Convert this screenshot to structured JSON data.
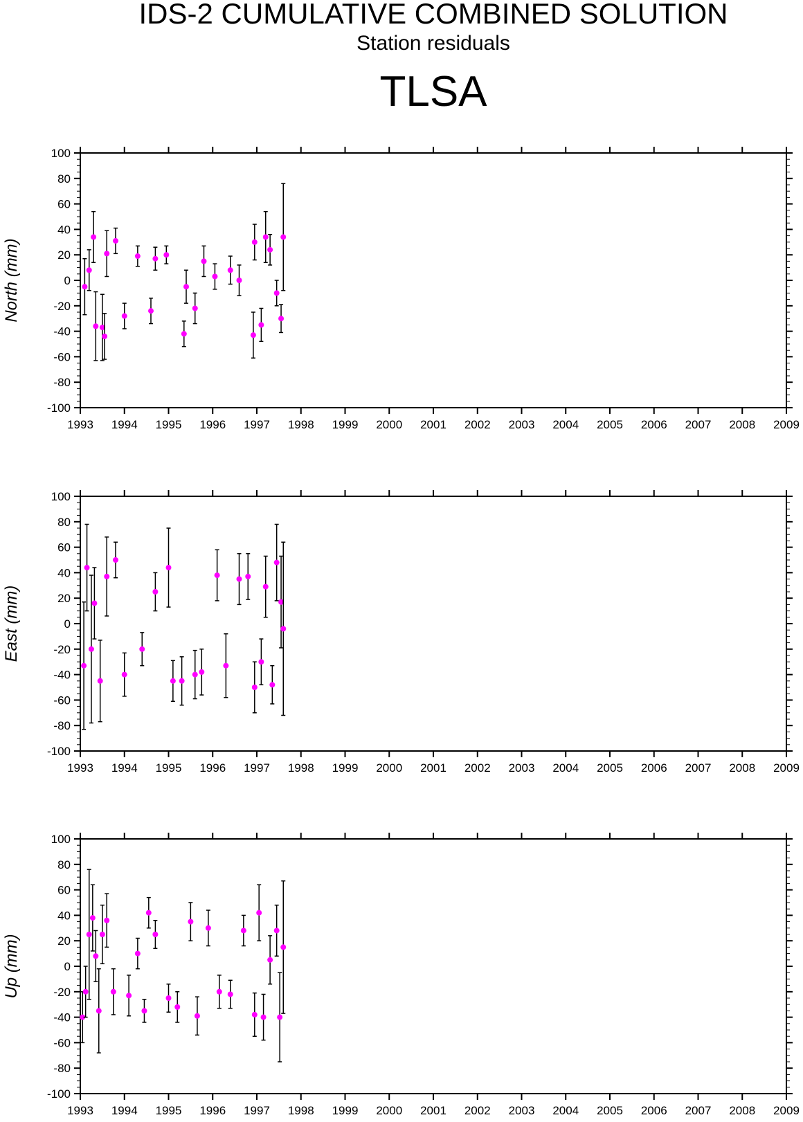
{
  "title": "IDS-2 CUMULATIVE COMBINED SOLUTION",
  "subtitle": "Station residuals",
  "station": "TLSA",
  "colors": {
    "marker": "#ff00ff",
    "errorbar": "#000000",
    "frame": "#000000"
  },
  "chart_data": [
    {
      "type": "scatter",
      "ylabel": "North (mm)",
      "xlim": [
        1993,
        2009
      ],
      "ylim": [
        -100,
        100
      ],
      "x_ticks": [
        "1993",
        "1994",
        "1995",
        "1996",
        "1997",
        "1998",
        "1999",
        "2000",
        "2001",
        "2002",
        "2003",
        "2004",
        "2005",
        "2006",
        "2007",
        "2008",
        "2009"
      ],
      "y_ticks": [
        "100",
        "80",
        "60",
        "40",
        "20",
        "0",
        "-20",
        "-40",
        "-60",
        "-80",
        "-100"
      ],
      "grid": false,
      "series": [
        {
          "x": [
            1993.1,
            1993.2,
            1993.3,
            1993.35,
            1993.5,
            1993.55,
            1993.6,
            1993.8,
            1994.0,
            1994.3,
            1994.6,
            1994.7,
            1994.95,
            1995.35,
            1995.4,
            1995.6,
            1995.8,
            1996.05,
            1996.4,
            1996.6,
            1996.92,
            1996.95,
            1997.1,
            1997.2,
            1997.3,
            1997.45,
            1997.55,
            1997.6
          ],
          "y": [
            -5,
            8,
            34,
            -36,
            -37,
            -44,
            21,
            31,
            -28,
            19,
            -24,
            17,
            20,
            -42,
            -5,
            -22,
            15,
            3,
            8,
            0,
            -43,
            30,
            -35,
            34,
            24,
            -10,
            -30,
            34
          ],
          "err": [
            22,
            16,
            20,
            27,
            26,
            18,
            18,
            10,
            10,
            8,
            10,
            9,
            7,
            10,
            13,
            12,
            12,
            10,
            11,
            12,
            18,
            14,
            13,
            20,
            12,
            10,
            11,
            42
          ]
        }
      ]
    },
    {
      "type": "scatter",
      "ylabel": "East (mm)",
      "xlim": [
        1993,
        2009
      ],
      "ylim": [
        -100,
        100
      ],
      "x_ticks": [
        "1993",
        "1994",
        "1995",
        "1996",
        "1997",
        "1998",
        "1999",
        "2000",
        "2001",
        "2002",
        "2003",
        "2004",
        "2005",
        "2006",
        "2007",
        "2008",
        "2009"
      ],
      "y_ticks": [
        "100",
        "80",
        "60",
        "40",
        "20",
        "0",
        "-20",
        "-40",
        "-60",
        "-80",
        "-100"
      ],
      "grid": false,
      "series": [
        {
          "x": [
            1993.08,
            1993.15,
            1993.25,
            1993.32,
            1993.45,
            1993.6,
            1993.8,
            1994.0,
            1994.4,
            1994.7,
            1995.0,
            1995.1,
            1995.3,
            1995.6,
            1995.75,
            1996.1,
            1996.3,
            1996.6,
            1996.8,
            1996.95,
            1997.1,
            1997.2,
            1997.35,
            1997.45,
            1997.55,
            1997.6
          ],
          "y": [
            -33,
            44,
            -20,
            16,
            -45,
            37,
            50,
            -40,
            -20,
            25,
            44,
            -45,
            -45,
            -40,
            -38,
            38,
            -33,
            35,
            37,
            -50,
            -30,
            29,
            -48,
            48,
            17,
            -4
          ],
          "err": [
            50,
            34,
            58,
            28,
            32,
            31,
            14,
            17,
            13,
            15,
            31,
            16,
            19,
            19,
            18,
            20,
            25,
            20,
            18,
            20,
            18,
            24,
            15,
            30,
            36,
            68
          ]
        }
      ]
    },
    {
      "type": "scatter",
      "ylabel": "Up (mm)",
      "xlim": [
        1993,
        2009
      ],
      "ylim": [
        -100,
        100
      ],
      "x_ticks": [
        "1993",
        "1994",
        "1995",
        "1996",
        "1997",
        "1998",
        "1999",
        "2000",
        "2001",
        "2002",
        "2003",
        "2004",
        "2005",
        "2006",
        "2007",
        "2008",
        "2009"
      ],
      "y_ticks": [
        "100",
        "80",
        "60",
        "40",
        "20",
        "0",
        "-20",
        "-40",
        "-60",
        "-80",
        "-100"
      ],
      "grid": false,
      "series": [
        {
          "x": [
            1993.05,
            1993.12,
            1993.2,
            1993.28,
            1993.35,
            1993.42,
            1993.5,
            1993.6,
            1993.75,
            1994.1,
            1994.3,
            1994.45,
            1994.55,
            1994.7,
            1995.0,
            1995.2,
            1995.5,
            1995.65,
            1995.9,
            1996.15,
            1996.4,
            1996.7,
            1996.95,
            1997.05,
            1997.15,
            1997.3,
            1997.45,
            1997.52,
            1997.6
          ],
          "y": [
            -40,
            -20,
            25,
            38,
            8,
            -35,
            25,
            36,
            -20,
            -23,
            10,
            -35,
            42,
            25,
            -25,
            -32,
            35,
            -39,
            30,
            -20,
            -22,
            28,
            -38,
            42,
            -40,
            5,
            28,
            -40,
            15
          ],
          "err": [
            20,
            20,
            51,
            26,
            20,
            33,
            23,
            21,
            18,
            16,
            12,
            9,
            12,
            11,
            11,
            12,
            15,
            15,
            14,
            13,
            11,
            12,
            17,
            22,
            18,
            19,
            20,
            35,
            52
          ]
        }
      ]
    }
  ]
}
